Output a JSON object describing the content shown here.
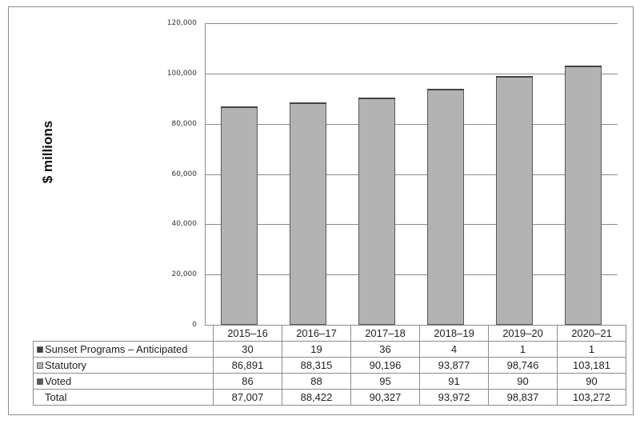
{
  "chart_data": {
    "type": "bar",
    "stacked": true,
    "title": "",
    "xlabel": "",
    "ylabel": "$ millions",
    "ylim": [
      0,
      120000
    ],
    "yticks": [
      "0",
      "20,000",
      "40,000",
      "60,000",
      "80,000",
      "100,000",
      "120,000"
    ],
    "grid": true,
    "legend_position": "data-table",
    "categories": [
      "2015–16",
      "2016–17",
      "2017–18",
      "2018–19",
      "2019–20",
      "2020–21"
    ],
    "series": [
      {
        "name": "Sunset Programs – Anticipated",
        "color": "#404040",
        "values": [
          30,
          19,
          36,
          4,
          1,
          1
        ]
      },
      {
        "name": "Statutory",
        "color": "#b3b3b3",
        "values": [
          86891,
          88315,
          90196,
          93877,
          98746,
          103181
        ]
      },
      {
        "name": "Voted",
        "color": "#595959",
        "values": [
          86,
          88,
          95,
          91,
          90,
          90
        ]
      }
    ],
    "totals": [
      87007,
      88422,
      90327,
      93972,
      98837,
      103272
    ]
  },
  "axis": {
    "ylabel": "$ millions",
    "ticks": [
      {
        "label": "120,000",
        "value": 120000
      },
      {
        "label": "100,000",
        "value": 100000
      },
      {
        "label": "80,000",
        "value": 80000
      },
      {
        "label": "60,000",
        "value": 60000
      },
      {
        "label": "40,000",
        "value": 40000
      },
      {
        "label": "20,000",
        "value": 20000
      },
      {
        "label": "0",
        "value": 0
      }
    ]
  },
  "table": {
    "years": [
      "2015–16",
      "2016–17",
      "2017–18",
      "2018–19",
      "2019–20",
      "2020–21"
    ],
    "rows": [
      {
        "label": "Sunset Programs – Anticipated",
        "swatch": "#404040",
        "values": [
          "30",
          "19",
          "36",
          "4",
          "1",
          "1"
        ]
      },
      {
        "label": "Statutory",
        "swatch": "#b3b3b3",
        "values": [
          "86,891",
          "88,315",
          "90,196",
          "93,877",
          "98,746",
          "103,181"
        ]
      },
      {
        "label": "Voted",
        "swatch": "#595959",
        "values": [
          "86",
          "88",
          "95",
          "91",
          "90",
          "90"
        ]
      },
      {
        "label": "Total",
        "swatch": "",
        "values": [
          "87,007",
          "88,422",
          "90,327",
          "93,972",
          "98,837",
          "103,272"
        ]
      }
    ]
  }
}
